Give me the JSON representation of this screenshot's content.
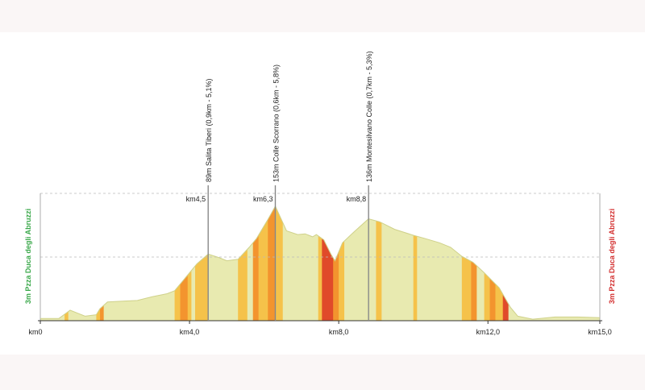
{
  "chart_data": {
    "type": "area",
    "title": "",
    "xlabel": "",
    "ylabel": "",
    "xlim": [
      0,
      15
    ],
    "start_label": "3m Pzza Duca degli Abruzzi",
    "end_label": "3m Pzza Duca degli Abruzzi",
    "start_color": "#3aa84a",
    "end_color": "#d32f2f",
    "x_ticks": [
      {
        "km": 0,
        "label": "km0"
      },
      {
        "km": 4.0,
        "label": "km4,0"
      },
      {
        "km": 8.0,
        "label": "km8,0"
      },
      {
        "km": 12.0,
        "label": "km12,0"
      },
      {
        "km": 15.0,
        "label": "km15,0"
      }
    ],
    "climbs": [
      {
        "km": 4.5,
        "km_label": "km4,5",
        "label": "89m Salita Tiberi (0,9km - 5,1%)"
      },
      {
        "km": 6.3,
        "km_label": "km6,3",
        "label": "153m Colle Scorrano (0,6km - 5,8%)"
      },
      {
        "km": 8.8,
        "km_label": "km8,8",
        "label": "136m Montesilvano Colle (0,7km - 5,3%)"
      }
    ],
    "profile": [
      [
        0.0,
        3
      ],
      [
        0.5,
        3
      ],
      [
        0.8,
        14
      ],
      [
        1.0,
        10
      ],
      [
        1.2,
        6
      ],
      [
        1.5,
        8
      ],
      [
        1.6,
        16
      ],
      [
        1.8,
        25
      ],
      [
        2.2,
        26
      ],
      [
        2.6,
        27
      ],
      [
        3.0,
        32
      ],
      [
        3.4,
        36
      ],
      [
        3.6,
        40
      ],
      [
        3.8,
        52
      ],
      [
        4.0,
        64
      ],
      [
        4.2,
        76
      ],
      [
        4.5,
        89
      ],
      [
        4.8,
        84
      ],
      [
        5.0,
        80
      ],
      [
        5.3,
        82
      ],
      [
        5.6,
        98
      ],
      [
        5.8,
        110
      ],
      [
        6.1,
        135
      ],
      [
        6.3,
        153
      ],
      [
        6.6,
        120
      ],
      [
        6.9,
        115
      ],
      [
        7.1,
        116
      ],
      [
        7.3,
        112
      ],
      [
        7.4,
        115
      ],
      [
        7.6,
        108
      ],
      [
        7.8,
        88
      ],
      [
        7.9,
        80
      ],
      [
        8.1,
        104
      ],
      [
        8.4,
        118
      ],
      [
        8.8,
        136
      ],
      [
        9.1,
        132
      ],
      [
        9.5,
        122
      ],
      [
        10.0,
        114
      ],
      [
        10.3,
        110
      ],
      [
        10.7,
        104
      ],
      [
        11.0,
        98
      ],
      [
        11.3,
        86
      ],
      [
        11.6,
        78
      ],
      [
        11.9,
        64
      ],
      [
        12.3,
        44
      ],
      [
        12.6,
        18
      ],
      [
        12.8,
        6
      ],
      [
        13.2,
        2
      ],
      [
        13.8,
        5
      ],
      [
        14.4,
        5
      ],
      [
        15.0,
        4
      ]
    ],
    "grade_bands": [
      {
        "from": 0.0,
        "to": 0.65,
        "color": "#e8eab0"
      },
      {
        "from": 0.65,
        "to": 0.75,
        "color": "#f5c24a"
      },
      {
        "from": 0.75,
        "to": 1.5,
        "color": "#e8eab0"
      },
      {
        "from": 1.5,
        "to": 1.6,
        "color": "#f5c24a"
      },
      {
        "from": 1.6,
        "to": 1.7,
        "color": "#f3942e"
      },
      {
        "from": 1.7,
        "to": 3.6,
        "color": "#e8eab0"
      },
      {
        "from": 3.6,
        "to": 3.75,
        "color": "#f5c24a"
      },
      {
        "from": 3.75,
        "to": 3.95,
        "color": "#f3942e"
      },
      {
        "from": 3.95,
        "to": 4.05,
        "color": "#f5c24a"
      },
      {
        "from": 4.05,
        "to": 4.15,
        "color": "#e8eab0"
      },
      {
        "from": 4.15,
        "to": 4.5,
        "color": "#f5c24a"
      },
      {
        "from": 4.5,
        "to": 5.3,
        "color": "#e8eab0"
      },
      {
        "from": 5.3,
        "to": 5.55,
        "color": "#f5c24a"
      },
      {
        "from": 5.55,
        "to": 5.7,
        "color": "#e8eab0"
      },
      {
        "from": 5.7,
        "to": 5.85,
        "color": "#f3942e"
      },
      {
        "from": 5.85,
        "to": 6.1,
        "color": "#f5c24a"
      },
      {
        "from": 6.1,
        "to": 6.3,
        "color": "#f3942e"
      },
      {
        "from": 6.3,
        "to": 6.5,
        "color": "#f5c24a"
      },
      {
        "from": 6.5,
        "to": 7.45,
        "color": "#e8eab0"
      },
      {
        "from": 7.45,
        "to": 7.55,
        "color": "#f5c24a"
      },
      {
        "from": 7.55,
        "to": 7.85,
        "color": "#e04a2a"
      },
      {
        "from": 7.85,
        "to": 8.0,
        "color": "#f3942e"
      },
      {
        "from": 8.0,
        "to": 8.15,
        "color": "#f5c24a"
      },
      {
        "from": 8.15,
        "to": 9.0,
        "color": "#e8eab0"
      },
      {
        "from": 9.0,
        "to": 9.15,
        "color": "#f5c24a"
      },
      {
        "from": 9.15,
        "to": 10.0,
        "color": "#e8eab0"
      },
      {
        "from": 10.0,
        "to": 10.1,
        "color": "#f5c24a"
      },
      {
        "from": 10.1,
        "to": 11.3,
        "color": "#e8eab0"
      },
      {
        "from": 11.3,
        "to": 11.55,
        "color": "#f5c24a"
      },
      {
        "from": 11.55,
        "to": 11.7,
        "color": "#f3942e"
      },
      {
        "from": 11.7,
        "to": 11.9,
        "color": "#e8eab0"
      },
      {
        "from": 11.9,
        "to": 12.05,
        "color": "#f5c24a"
      },
      {
        "from": 12.05,
        "to": 12.2,
        "color": "#f3942e"
      },
      {
        "from": 12.2,
        "to": 12.4,
        "color": "#f5c24a"
      },
      {
        "from": 12.4,
        "to": 12.55,
        "color": "#e04a2a"
      },
      {
        "from": 12.55,
        "to": 15.0,
        "color": "#e8eab0"
      }
    ]
  }
}
